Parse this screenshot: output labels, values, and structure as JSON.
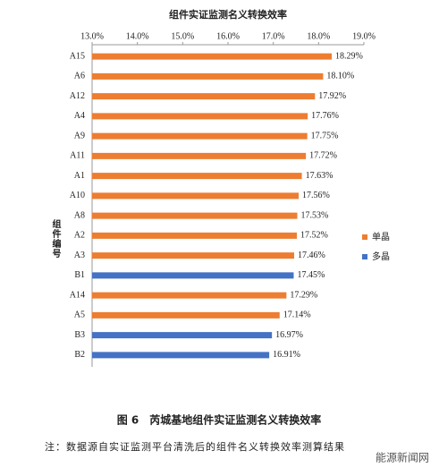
{
  "chart_data": {
    "type": "bar",
    "orientation": "horizontal",
    "title": "组件实证监测名义转换效率",
    "y_label": "组件编号",
    "categories": [
      "A15",
      "A6",
      "A12",
      "A4",
      "A9",
      "A11",
      "A1",
      "A10",
      "A8",
      "A2",
      "A3",
      "B1",
      "A14",
      "A5",
      "B3",
      "B2"
    ],
    "series": [
      {
        "name": "单晶",
        "color": "#ed7d31",
        "values": [
          18.29,
          18.1,
          17.92,
          17.76,
          17.75,
          17.72,
          17.63,
          17.56,
          17.53,
          17.52,
          17.46,
          null,
          17.29,
          17.14,
          null,
          null
        ],
        "value_labels": [
          "18.29%",
          "18.10%",
          "17.92%",
          "17.76%",
          "17.75%",
          "17.72%",
          "17.63%",
          "17.56%",
          "17.53%",
          "17.52%",
          "17.46%",
          null,
          "17.29%",
          "17.14%",
          null,
          null
        ]
      },
      {
        "name": "多晶",
        "color": "#4472c4",
        "values": [
          null,
          null,
          null,
          null,
          null,
          null,
          null,
          null,
          null,
          null,
          null,
          17.45,
          null,
          null,
          16.97,
          16.91
        ],
        "value_labels": [
          null,
          null,
          null,
          null,
          null,
          null,
          null,
          null,
          null,
          null,
          null,
          "17.45%",
          null,
          null,
          "16.97%",
          "16.91%"
        ]
      }
    ],
    "xlim": [
      13,
      19
    ],
    "xticks": [
      {
        "value": 13,
        "label": "13.0%"
      },
      {
        "value": 14,
        "label": "14.0%"
      },
      {
        "value": 15,
        "label": "15.0%"
      },
      {
        "value": 16,
        "label": "16.0%"
      },
      {
        "value": 17,
        "label": "17.0%"
      },
      {
        "value": 18,
        "label": "18.0%"
      },
      {
        "value": 19,
        "label": "19.0%"
      }
    ],
    "grid": false,
    "legend": "right"
  },
  "caption": "图 6　芮城基地组件实证监测名义转换效率",
  "note": "注：数据源自实证监测平台清洗后的组件名义转换效率测算结果",
  "watermark": "能源新闻网"
}
